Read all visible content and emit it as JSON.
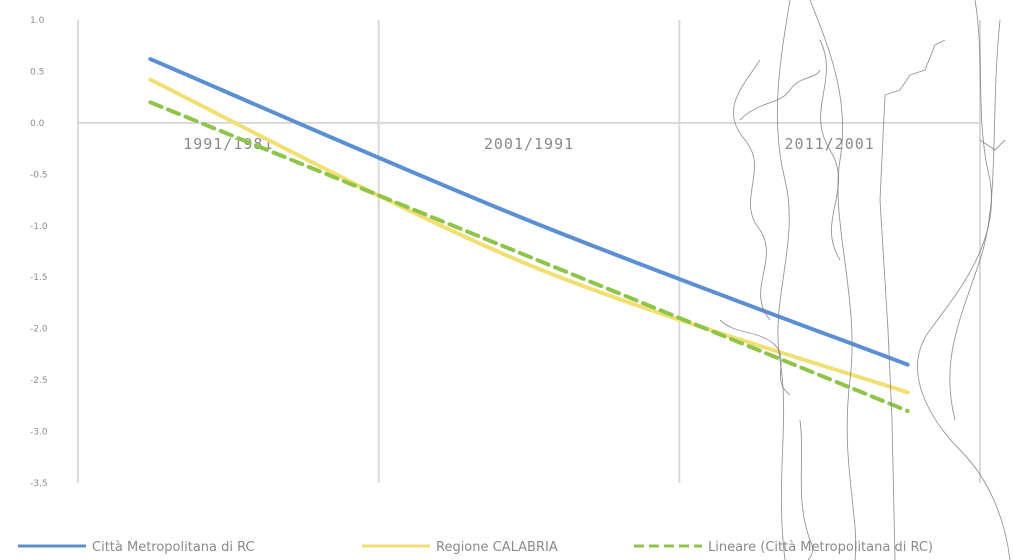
{
  "chart_data": {
    "type": "line",
    "categories": [
      "1991/1981",
      "2001/1991",
      "2011/2001"
    ],
    "y_ticks": [
      "1.0",
      "0.5",
      "0.0",
      "-0.5",
      "-1.0",
      "-1.5",
      "-2.0",
      "-2.5",
      "-3.0",
      "-3.5"
    ],
    "ylim": [
      -3.5,
      1.0
    ],
    "grid": true,
    "legend_position": "bottom",
    "series": [
      {
        "name": "Città Metropolitana di RC",
        "values": [
          0.62,
          -0.95,
          -2.35
        ],
        "color": "#5b8fd1",
        "style": "solid"
      },
      {
        "name": "Regione CALABRIA",
        "values": [
          0.42,
          -1.38,
          -2.62
        ],
        "color": "#f2df73",
        "style": "solid"
      },
      {
        "name": "Lineare (Città Metropolitana di RC)",
        "values": [
          0.2,
          -0.9,
          -2.8
        ],
        "color": "#8fc44a",
        "style": "dashed"
      }
    ]
  }
}
